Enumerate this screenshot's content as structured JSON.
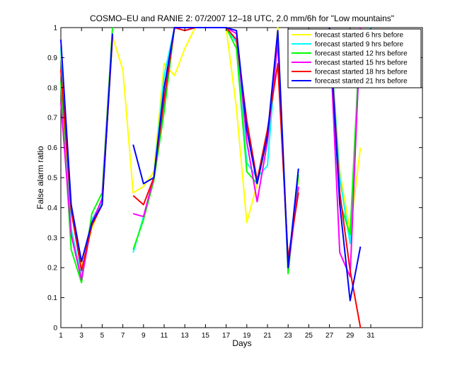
{
  "chart_data": {
    "type": "line",
    "title": "COSMO–EU and RANIE 2: 07/2007 12–18 UTC, 2.0 mm/6h for \"Low mountains\"",
    "xlabel": "Days",
    "ylabel": "False alarm ratio",
    "xlim": [
      1,
      36
    ],
    "ylim": [
      0,
      1
    ],
    "xticks": [
      1,
      3,
      5,
      7,
      9,
      11,
      13,
      15,
      17,
      19,
      21,
      23,
      25,
      27,
      29,
      31
    ],
    "yticks": [
      0,
      0.1,
      0.2,
      0.3,
      0.4,
      0.5,
      0.6,
      0.7,
      0.8,
      0.9,
      1
    ],
    "legend_position": "top-right",
    "grid": false,
    "series": [
      {
        "name": "forecast started 6 hrs before",
        "color": "#ffff00",
        "points": [
          [
            1,
            0.92
          ],
          [
            2,
            0.4
          ],
          [
            3,
            0.2
          ],
          [
            4,
            0.33
          ],
          [
            5,
            0.42
          ],
          [
            6,
            0.97
          ],
          [
            7,
            0.86
          ],
          [
            8,
            0.45
          ],
          [
            9,
            0.47
          ],
          [
            10,
            0.52
          ],
          [
            11,
            0.88
          ],
          [
            12,
            0.84
          ],
          [
            13,
            0.93
          ],
          [
            14,
            1.0
          ],
          [
            15,
            1.0
          ],
          [
            16,
            1.0
          ],
          [
            17,
            1.0
          ],
          [
            18,
            0.73
          ],
          [
            19,
            0.35
          ],
          [
            20,
            0.48
          ],
          [
            21,
            0.63
          ],
          [
            22,
            1.0
          ],
          [
            23,
            0.21
          ],
          [
            24,
            0.5
          ],
          null,
          [
            27,
            1.0
          ],
          [
            28,
            0.52
          ],
          [
            29,
            0.32
          ],
          [
            30,
            0.6
          ]
        ]
      },
      {
        "name": "forecast started 9 hrs before",
        "color": "#00ffff",
        "points": [
          [
            1,
            0.93
          ],
          [
            2,
            0.33
          ],
          [
            3,
            0.17
          ],
          [
            4,
            0.36
          ],
          [
            5,
            0.42
          ],
          [
            6,
            0.98
          ],
          null,
          [
            8,
            0.25
          ],
          [
            9,
            0.37
          ],
          [
            10,
            0.5
          ],
          [
            11,
            0.84
          ],
          [
            12,
            1.0
          ],
          [
            13,
            1.0
          ],
          [
            14,
            1.0
          ],
          [
            15,
            1.0
          ],
          [
            16,
            1.0
          ],
          [
            17,
            1.0
          ],
          [
            18,
            0.95
          ],
          [
            19,
            0.55
          ],
          [
            20,
            0.5
          ],
          [
            21,
            0.54
          ],
          [
            22,
            0.98
          ],
          [
            23,
            0.2
          ],
          [
            24,
            0.53
          ],
          null,
          [
            27,
            1.0
          ],
          [
            28,
            0.5
          ],
          [
            29,
            0.28
          ],
          [
            30,
            0.95
          ],
          [
            31,
            1.0
          ]
        ]
      },
      {
        "name": "forecast started 12 hrs before",
        "color": "#00ff00",
        "points": [
          [
            1,
            0.82
          ],
          [
            2,
            0.26
          ],
          [
            3,
            0.15
          ],
          [
            4,
            0.38
          ],
          [
            5,
            0.45
          ],
          [
            6,
            1.0
          ],
          null,
          [
            8,
            0.26
          ],
          [
            9,
            0.36
          ],
          [
            10,
            0.49
          ],
          [
            11,
            0.72
          ],
          [
            12,
            1.0
          ],
          [
            13,
            1.0
          ],
          [
            14,
            1.0
          ],
          [
            15,
            1.0
          ],
          [
            16,
            1.0
          ],
          [
            17,
            1.0
          ],
          [
            18,
            0.93
          ],
          [
            19,
            0.52
          ],
          [
            20,
            0.48
          ],
          [
            21,
            0.64
          ],
          [
            22,
            0.98
          ],
          [
            23,
            0.18
          ],
          [
            24,
            0.51
          ],
          null,
          [
            27,
            1.0
          ],
          [
            28,
            0.42
          ],
          [
            29,
            0.31
          ],
          [
            30,
            1.0
          ]
        ]
      },
      {
        "name": "forecast started 15 hrs before",
        "color": "#ff00ff",
        "points": [
          [
            1,
            0.75
          ],
          [
            2,
            0.31
          ],
          [
            3,
            0.16
          ],
          [
            4,
            0.35
          ],
          [
            5,
            0.43
          ],
          [
            6,
            0.98
          ],
          null,
          [
            8,
            0.38
          ],
          [
            9,
            0.37
          ],
          [
            10,
            0.5
          ],
          [
            11,
            0.76
          ],
          [
            12,
            1.0
          ],
          [
            13,
            1.0
          ],
          [
            14,
            1.0
          ],
          [
            15,
            1.0
          ],
          [
            16,
            1.0
          ],
          [
            17,
            1.0
          ],
          [
            18,
            0.98
          ],
          [
            19,
            0.62
          ],
          [
            20,
            0.42
          ],
          [
            21,
            0.62
          ],
          [
            22,
            0.95
          ],
          [
            23,
            0.2
          ],
          [
            24,
            0.47
          ],
          null,
          [
            27,
            1.0
          ],
          [
            28,
            0.25
          ],
          [
            29,
            0.17
          ],
          [
            30,
            1.0
          ]
        ]
      },
      {
        "name": "forecast started 18 hrs before",
        "color": "#ff0000",
        "points": [
          [
            1,
            0.86
          ],
          [
            2,
            0.39
          ],
          [
            3,
            0.19
          ],
          [
            4,
            0.34
          ],
          [
            5,
            0.41
          ],
          [
            6,
            0.97
          ],
          null,
          [
            8,
            0.44
          ],
          [
            9,
            0.41
          ],
          [
            10,
            0.5
          ],
          [
            11,
            0.76
          ],
          [
            12,
            1.0
          ],
          [
            13,
            0.99
          ],
          [
            14,
            1.0
          ],
          [
            15,
            1.0
          ],
          [
            16,
            1.0
          ],
          [
            17,
            1.0
          ],
          [
            18,
            0.96
          ],
          [
            19,
            0.69
          ],
          [
            20,
            0.49
          ],
          [
            21,
            0.66
          ],
          [
            22,
            0.88
          ],
          [
            23,
            0.23
          ],
          [
            24,
            0.45
          ],
          null,
          [
            27,
            1.0
          ],
          [
            28,
            0.45
          ],
          [
            29,
            0.19
          ],
          [
            30,
            0.0
          ]
        ]
      },
      {
        "name": "forecast started 21 hrs before",
        "color": "#0000ff",
        "points": [
          [
            1,
            0.96
          ],
          [
            2,
            0.41
          ],
          [
            3,
            0.22
          ],
          [
            4,
            0.35
          ],
          [
            5,
            0.41
          ],
          [
            6,
            0.98
          ],
          null,
          [
            8,
            0.61
          ],
          [
            9,
            0.48
          ],
          [
            10,
            0.5
          ],
          [
            11,
            0.8
          ],
          [
            12,
            1.0
          ],
          [
            13,
            1.0
          ],
          [
            14,
            1.0
          ],
          [
            15,
            1.0
          ],
          [
            16,
            1.0
          ],
          [
            17,
            1.0
          ],
          [
            18,
            0.99
          ],
          [
            19,
            0.66
          ],
          [
            20,
            0.48
          ],
          [
            21,
            0.64
          ],
          [
            22,
            0.99
          ],
          [
            23,
            0.2
          ],
          [
            24,
            0.53
          ],
          null,
          [
            27,
            1.0
          ],
          [
            28,
            0.41
          ],
          [
            29,
            0.09
          ],
          [
            30,
            0.27
          ]
        ]
      }
    ]
  }
}
